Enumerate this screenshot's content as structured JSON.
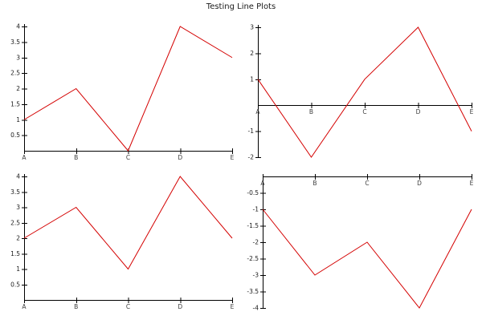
{
  "page": {
    "title": "Testing Line Plots",
    "background": "#ffffff"
  },
  "style": {
    "line_color": "#d40000",
    "axis_color": "#000000"
  },
  "chart_data": [
    {
      "id": "top-left",
      "type": "line",
      "title": "",
      "categories": [
        "A",
        "B",
        "C",
        "D",
        "E"
      ],
      "values": [
        1,
        2,
        0,
        4,
        3
      ],
      "ylim": [
        0,
        4
      ],
      "yticks": [
        0.5,
        1,
        1.5,
        2,
        2.5,
        3,
        3.5,
        4
      ],
      "ytick_labels": [
        "0.5",
        "1",
        "1.5",
        "2",
        "2.5",
        "3",
        "3.5",
        "4"
      ],
      "x_axis_at": 0,
      "grid": false,
      "legend": false
    },
    {
      "id": "top-right",
      "type": "line",
      "title": "",
      "categories": [
        "A",
        "B",
        "C",
        "D",
        "E"
      ],
      "values": [
        1,
        -2,
        1,
        3,
        -1
      ],
      "ylim": [
        -2,
        3
      ],
      "yticks": [
        -2,
        -1,
        1,
        2,
        3
      ],
      "ytick_labels": [
        "-2",
        "-1",
        "1",
        "2",
        "3"
      ],
      "x_axis_at": 0,
      "grid": false,
      "legend": false
    },
    {
      "id": "bottom-left",
      "type": "line",
      "title": "",
      "categories": [
        "A",
        "B",
        "C",
        "D",
        "E"
      ],
      "values": [
        2,
        3,
        1,
        4,
        2
      ],
      "ylim": [
        0,
        4
      ],
      "yticks": [
        0.5,
        1,
        1.5,
        2,
        2.5,
        3,
        3.5,
        4
      ],
      "ytick_labels": [
        "0.5",
        "1",
        "1.5",
        "2",
        "2.5",
        "3",
        "3.5",
        "4"
      ],
      "x_axis_at": 0,
      "grid": false,
      "legend": false
    },
    {
      "id": "bottom-right",
      "type": "line",
      "title": "",
      "categories": [
        "A",
        "B",
        "C",
        "D",
        "E"
      ],
      "values": [
        -1,
        -3,
        -2,
        -4,
        -1
      ],
      "ylim": [
        -4,
        0
      ],
      "yticks": [
        -4,
        -3.5,
        -3,
        -2.5,
        -2,
        -1.5,
        -1,
        -0.5
      ],
      "ytick_labels": [
        "-4",
        "-3.5",
        "-3",
        "-2.5",
        "-2",
        "-1.5",
        "-1",
        "-0.5"
      ],
      "x_axis_at": 0,
      "grid": false,
      "legend": false
    }
  ]
}
